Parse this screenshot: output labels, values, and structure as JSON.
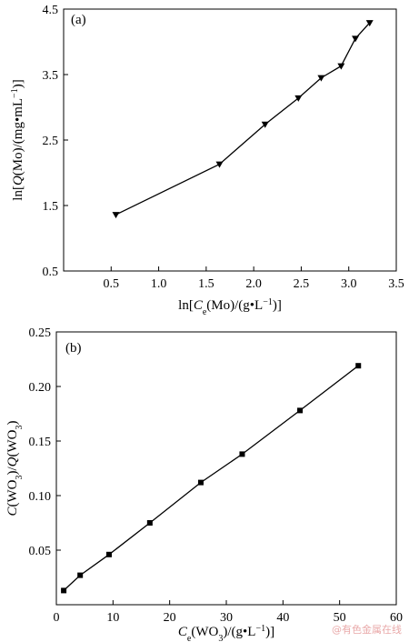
{
  "watermark": "@有色金属在线",
  "chart_data": [
    {
      "type": "line",
      "panel_label": "(a)",
      "marker": "triangle-down",
      "xlim": [
        0,
        3.5
      ],
      "ylim": [
        0.5,
        4.5
      ],
      "xticks": [
        0.5,
        1.0,
        1.5,
        2.0,
        2.5,
        3.0,
        3.5
      ],
      "yticks": [
        0.5,
        1.5,
        2.5,
        3.5,
        4.5
      ],
      "xtick_labels": [
        "0.5",
        "1.0",
        "1.5",
        "2.0",
        "2.5",
        "3.0",
        "3.5"
      ],
      "ytick_labels": [
        "0.5",
        "1.5",
        "2.5",
        "3.5",
        "4.5"
      ],
      "grid": false,
      "series": [
        {
          "x": [
            0.55,
            1.64,
            2.12,
            2.47,
            2.71,
            2.92,
            3.07,
            3.22
          ],
          "y": [
            1.36,
            2.13,
            2.74,
            3.14,
            3.45,
            3.63,
            4.05,
            4.29
          ]
        }
      ]
    },
    {
      "type": "line",
      "panel_label": "(b)",
      "marker": "square",
      "xlim": [
        0,
        60
      ],
      "ylim": [
        0,
        0.25
      ],
      "xticks": [
        10,
        20,
        30,
        40,
        50,
        60
      ],
      "yticks": [
        0.05,
        0.1,
        0.15,
        0.2,
        0.25
      ],
      "xtick_labels": [
        "10",
        "20",
        "30",
        "40",
        "50",
        "60"
      ],
      "ytick_labels": [
        "0.05",
        "0.10",
        "0.15",
        "0.20",
        "0.25"
      ],
      "origin_label": "0",
      "grid": false,
      "series": [
        {
          "x": [
            1.3,
            4.2,
            9.3,
            16.5,
            25.5,
            32.8,
            43.0,
            53.3
          ],
          "y": [
            0.013,
            0.027,
            0.046,
            0.075,
            0.112,
            0.138,
            0.178,
            0.219
          ]
        }
      ]
    }
  ]
}
